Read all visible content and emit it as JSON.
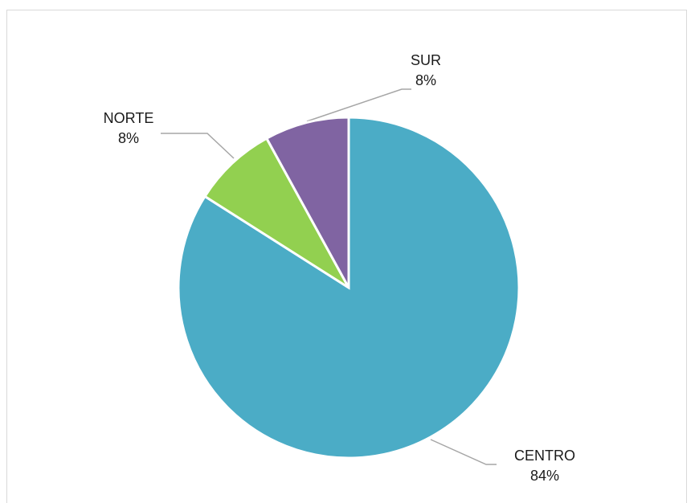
{
  "chart_data": {
    "type": "pie",
    "categories": [
      "CENTRO",
      "NORTE",
      "SUR"
    ],
    "values": [
      84,
      8,
      8
    ],
    "value_labels": [
      "84%",
      "8%",
      "8%"
    ],
    "colors": [
      "#4bacc6",
      "#92d050",
      "#8064a2"
    ]
  }
}
